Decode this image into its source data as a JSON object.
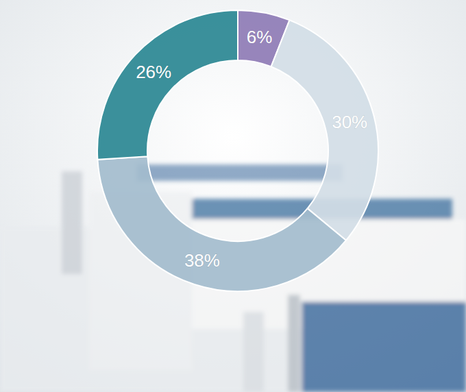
{
  "chart_data": {
    "type": "donut",
    "values": [
      6,
      30,
      38,
      26
    ],
    "value_labels": [
      "6%",
      "30%",
      "38%",
      "26%"
    ],
    "colors": [
      "#8e7bb5",
      "#d3dde6",
      "#a3bccd",
      "#2a8793"
    ],
    "data_labels": true
  }
}
